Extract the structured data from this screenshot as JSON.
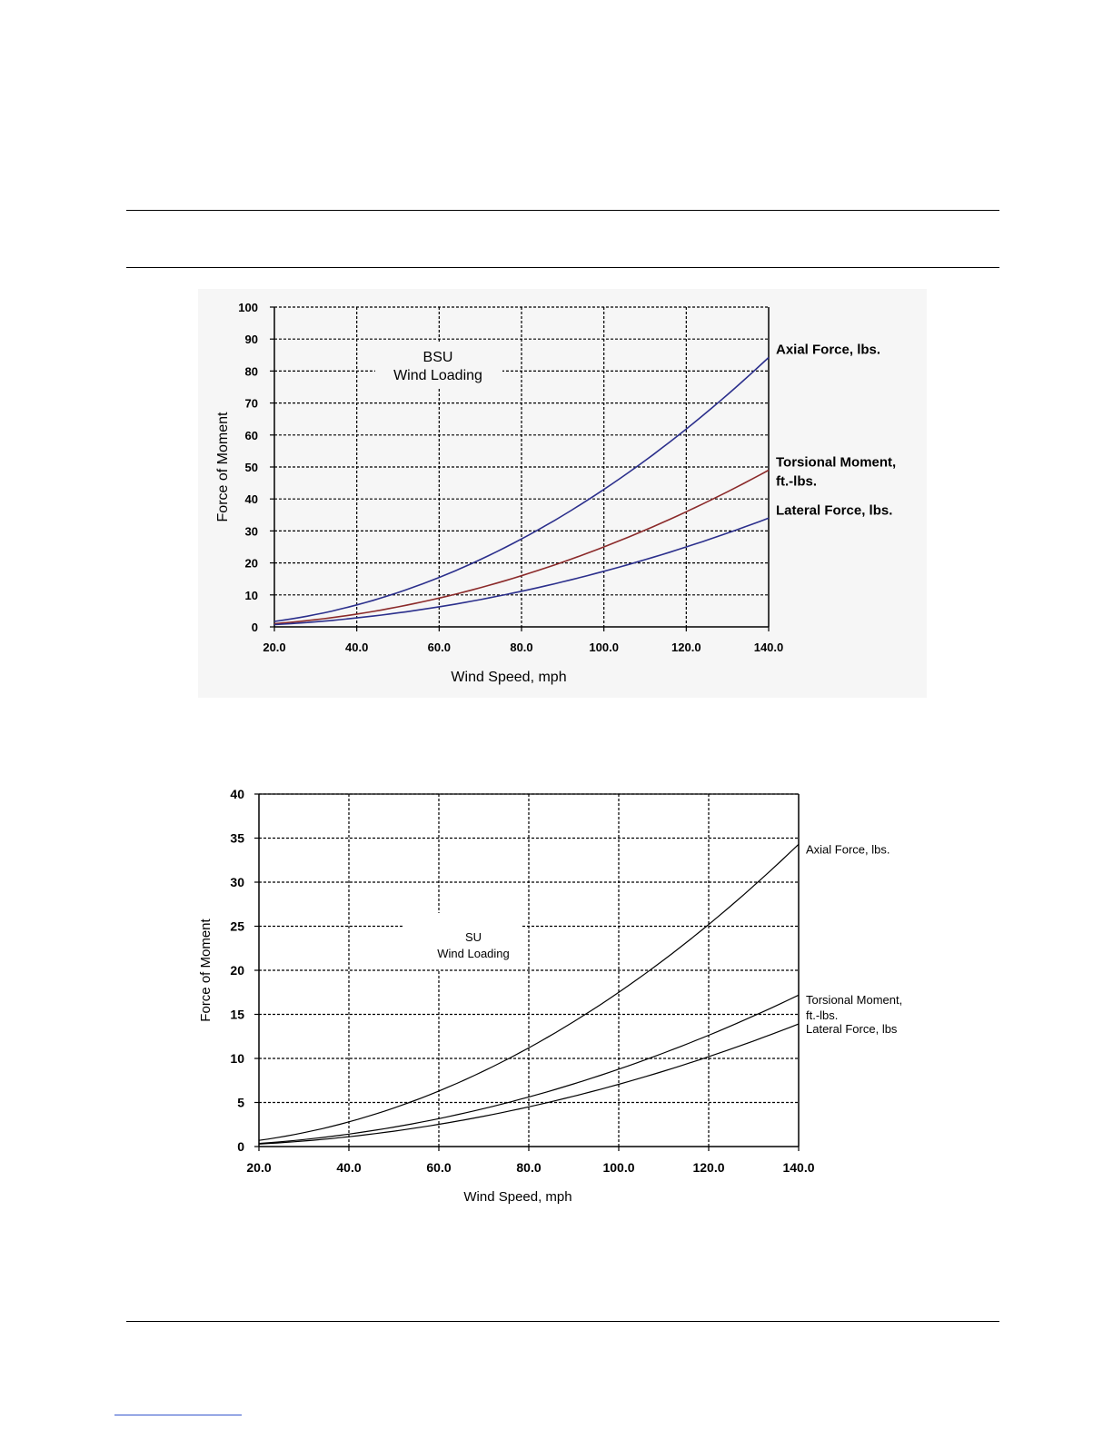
{
  "chart_data": [
    {
      "type": "line",
      "title": "BSU",
      "subtitle": "Wind Loading",
      "xlabel": "Wind Speed, mph",
      "ylabel": "Force of Moment",
      "xlim": [
        20,
        140
      ],
      "ylim": [
        0,
        100
      ],
      "x_ticks": [
        20,
        40,
        60,
        80,
        100,
        120,
        140
      ],
      "x_tick_labels": [
        "20.0",
        "40.0",
        "60.0",
        "80.0",
        "100.0",
        "120.0",
        "140.0"
      ],
      "y_ticks": [
        0,
        10,
        20,
        30,
        40,
        50,
        60,
        70,
        80,
        90,
        100
      ],
      "y_tick_labels": [
        "0",
        "10",
        "20",
        "30",
        "40",
        "50",
        "60",
        "70",
        "80",
        "90",
        "100"
      ],
      "grid": true,
      "legend": "line-end labels at right",
      "x": [
        20,
        40,
        60,
        80,
        100,
        120,
        140
      ],
      "series": [
        {
          "name": "Axial Force, lbs.",
          "label_lines": [
            "Axial Force, lbs."
          ],
          "color": "#2b2f8c",
          "values": [
            1.7,
            6.9,
            15.4,
            27.5,
            43.0,
            61.9,
            84.2
          ]
        },
        {
          "name": "Torsional Moment, ft.-lbs.",
          "label_lines": [
            "Torsional Moment,",
            "ft.-lbs."
          ],
          "color": "#8b2a2a",
          "values": [
            1.0,
            4.0,
            9.0,
            16.0,
            25.0,
            36.0,
            49.0
          ]
        },
        {
          "name": "Lateral Force, lbs.",
          "label_lines": [
            "Lateral Force, lbs."
          ],
          "color": "#2b2f8c",
          "values": [
            0.7,
            2.8,
            6.3,
            11.1,
            17.4,
            25.0,
            34.0
          ]
        }
      ]
    },
    {
      "type": "line",
      "title": "SU",
      "subtitle": "Wind Loading",
      "xlabel": "Wind Speed, mph",
      "ylabel": "Force of Moment",
      "xlim": [
        20,
        140
      ],
      "ylim": [
        0,
        40
      ],
      "x_ticks": [
        20,
        40,
        60,
        80,
        100,
        120,
        140
      ],
      "x_tick_labels": [
        "20.0",
        "40.0",
        "60.0",
        "80.0",
        "100.0",
        "120.0",
        "140.0"
      ],
      "y_ticks": [
        0,
        5,
        10,
        15,
        20,
        25,
        30,
        35,
        40
      ],
      "y_tick_labels": [
        "0",
        "5",
        "10",
        "15",
        "20",
        "25",
        "30",
        "35",
        "40"
      ],
      "grid": true,
      "legend": "line-end labels at right",
      "x": [
        20,
        40,
        60,
        80,
        100,
        120,
        140
      ],
      "series": [
        {
          "name": "Axial Force, lbs.",
          "label_lines": [
            "Axial Force, lbs."
          ],
          "color": "#000000",
          "values": [
            0.7,
            2.8,
            6.3,
            11.2,
            17.5,
            25.2,
            34.3
          ]
        },
        {
          "name": "Torsional Moment, ft.-lbs.",
          "label_lines": [
            "Torsional Moment,",
            "ft.-lbs."
          ],
          "color": "#000000",
          "values": [
            0.35,
            1.4,
            3.2,
            5.6,
            8.8,
            12.6,
            17.2
          ]
        },
        {
          "name": "Lateral Force, lbs",
          "label_lines": [
            "Lateral Force, lbs"
          ],
          "color": "#000000",
          "values": [
            0.3,
            1.1,
            2.5,
            4.5,
            7.1,
            10.2,
            13.9
          ]
        }
      ]
    }
  ]
}
